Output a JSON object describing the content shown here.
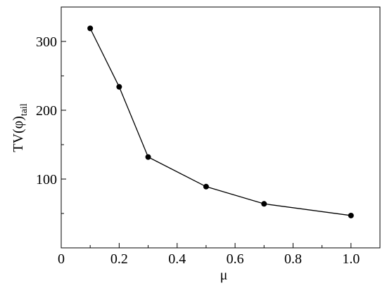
{
  "chart_data": {
    "type": "line",
    "xlabel": "μ",
    "ylabel": {
      "text": "TV(φ)",
      "subscript": "tail"
    },
    "x": [
      0.1,
      0.2,
      0.3,
      0.5,
      0.7,
      1.0
    ],
    "series": [
      {
        "color": "#000000",
        "values": [
          319,
          234,
          132,
          89,
          64,
          47
        ]
      }
    ],
    "xlim": [
      0,
      1.1
    ],
    "ylim": [
      0,
      350
    ],
    "xticks": [
      0,
      0.2,
      0.4,
      0.6,
      0.8,
      {
        "value": 1,
        "label": "1.0"
      }
    ],
    "xminorticks": [
      0.1,
      0.3,
      0.5,
      0.7,
      0.9
    ],
    "yticks": [
      100,
      200,
      300
    ],
    "yminorticks": [
      50,
      150,
      250
    ],
    "grid": false
  }
}
